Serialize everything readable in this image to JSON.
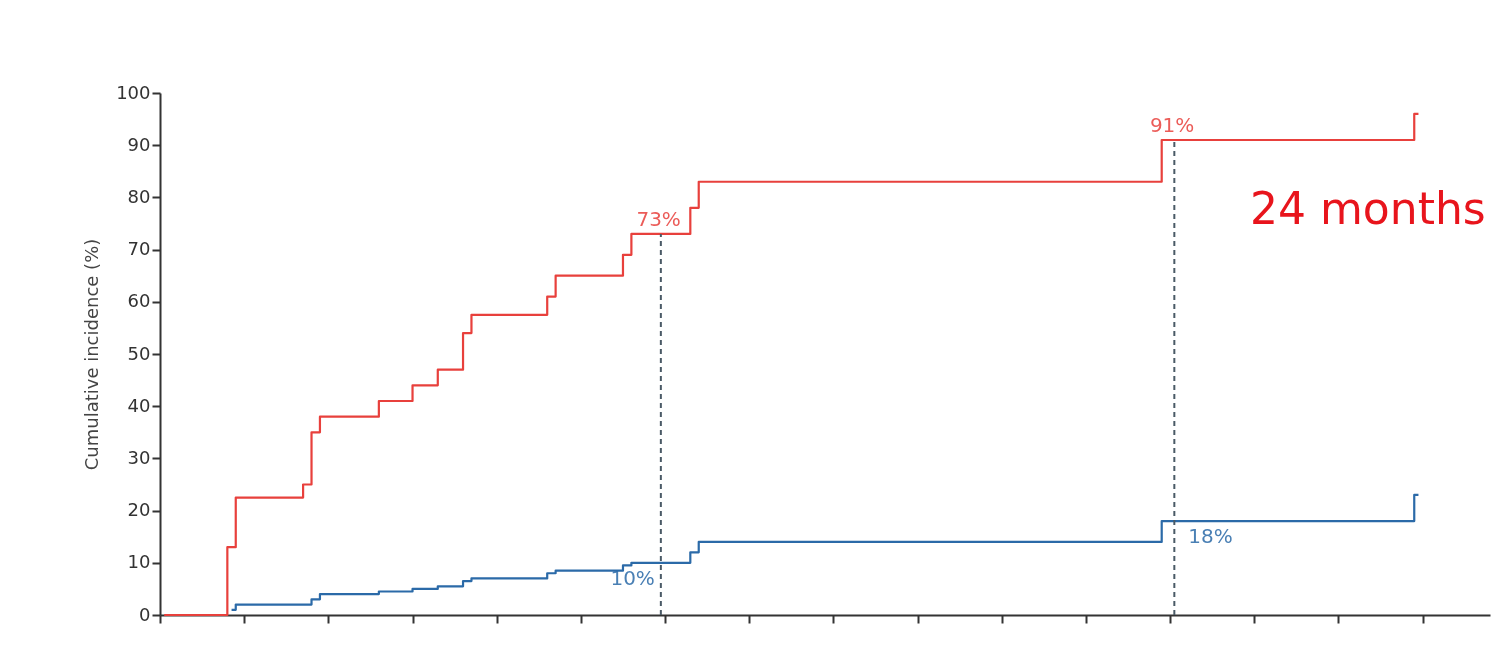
{
  "chart_data": {
    "type": "step",
    "ylabel": "Cumulative incidence (%)",
    "categories": [
      null,
      null,
      null,
      null,
      null,
      null,
      null,
      null,
      null,
      null,
      null,
      null,
      null,
      null,
      null,
      null,
      null,
      null,
      null,
      null,
      null,
      null,
      null,
      null,
      null,
      null,
      null,
      null,
      null,
      null,
      null,
      null,
      null,
      null,
      null,
      null,
      null,
      null,
      null,
      null,
      null,
      null,
      null,
      null,
      null,
      null,
      null,
      null,
      null,
      null,
      null,
      null,
      null,
      null,
      null,
      null,
      null,
      null,
      null,
      null,
      null,
      null,
      null,
      null,
      null,
      null,
      null,
      null,
      null,
      null,
      null,
      null,
      null,
      null,
      null,
      null,
      null,
      null,
      null,
      null,
      null,
      null,
      null,
      null,
      null,
      null,
      null,
      null,
      null,
      null,
      null,
      null,
      null,
      null,
      null,
      null,
      null,
      null,
      null,
      null,
      null,
      null,
      null,
      null,
      null,
      null,
      null,
      null,
      null,
      null,
      null,
      null,
      null,
      null,
      null,
      null,
      null,
      null,
      null,
      null,
      null,
      null,
      null,
      null,
      null,
      null,
      null,
      null,
      null,
      null,
      null,
      null,
      null,
      null,
      null,
      null,
      null,
      null,
      null,
      null,
      null,
      null,
      null,
      null,
      null,
      null,
      null,
      null,
      null,
      null
    ],
    "ylim": [
      0,
      100
    ],
    "yticks": [
      0,
      10,
      20,
      30,
      40,
      50,
      60,
      70,
      80,
      90,
      100
    ],
    "tick_labels": "y",
    "grid": false,
    "series": [
      {
        "color": "#e8403c",
        "values": [
          0,
          0,
          0,
          0,
          0,
          0,
          0,
          0,
          13,
          22.5,
          22.5,
          22.5,
          22.5,
          22.5,
          22.5,
          22.5,
          22.5,
          25,
          35,
          38,
          38,
          38,
          38,
          38,
          38,
          38,
          41,
          41,
          41,
          41,
          44,
          44,
          44,
          47,
          47,
          47,
          54,
          57.5,
          57.5,
          57.5,
          57.5,
          57.5,
          57.5,
          57.5,
          57.5,
          57.5,
          61,
          65,
          65,
          65,
          65,
          65,
          65,
          65,
          65,
          69,
          73,
          73,
          73,
          73,
          73,
          73,
          73,
          78,
          83,
          83,
          83,
          83,
          83,
          83,
          83,
          83,
          83,
          83,
          83,
          83,
          83,
          83,
          83,
          83,
          83,
          83,
          83,
          83,
          83,
          83,
          83,
          83,
          83,
          83,
          83,
          83,
          83,
          83,
          83,
          83,
          83,
          83,
          83,
          83,
          83,
          83,
          83,
          83,
          83,
          83,
          83,
          83,
          83,
          83,
          83,
          83,
          83,
          83,
          83,
          83,
          83,
          83,
          83,
          91,
          91,
          91,
          91,
          91,
          91,
          91,
          91,
          91,
          91,
          91,
          91,
          91,
          91,
          91,
          91,
          91,
          91,
          91,
          91,
          91,
          91,
          91,
          91,
          91,
          91,
          91,
          91,
          91,
          91,
          96
        ]
      },
      {
        "color": "#2b6aa8",
        "values": [
          null,
          null,
          null,
          null,
          null,
          null,
          null,
          null,
          1,
          2,
          2,
          2,
          2,
          2,
          2,
          2,
          2,
          2,
          3,
          4,
          4,
          4,
          4,
          4,
          4,
          4,
          4.5,
          4.5,
          4.5,
          4.5,
          5,
          5,
          5,
          5.5,
          5.5,
          5.5,
          6.5,
          7,
          7,
          7,
          7,
          7,
          7,
          7,
          7,
          7,
          8,
          8.5,
          8.5,
          8.5,
          8.5,
          8.5,
          8.5,
          8.5,
          8.5,
          9.5,
          10,
          10,
          10,
          10,
          10,
          10,
          10,
          12,
          14,
          14,
          14,
          14,
          14,
          14,
          14,
          14,
          14,
          14,
          14,
          14,
          14,
          14,
          14,
          14,
          14,
          14,
          14,
          14,
          14,
          14,
          14,
          14,
          14,
          14,
          14,
          14,
          14,
          14,
          14,
          14,
          14,
          14,
          14,
          14,
          14,
          14,
          14,
          14,
          14,
          14,
          14,
          14,
          14,
          14,
          14,
          14,
          14,
          14,
          14,
          14,
          14,
          14,
          14,
          18,
          18,
          18,
          18,
          18,
          18,
          18,
          18,
          18,
          18,
          18,
          18,
          18,
          18,
          18,
          18,
          18,
          18,
          18,
          18,
          18,
          18,
          18,
          18,
          18,
          18,
          18,
          18,
          18,
          18,
          23
        ]
      }
    ],
    "annotations": [
      {
        "text": "73%",
        "y": 73
      },
      {
        "text": "10%",
        "y": 10
      },
      {
        "text": "91%",
        "y": 91
      },
      {
        "text": "18%",
        "y": 18
      },
      "24 months"
    ]
  }
}
